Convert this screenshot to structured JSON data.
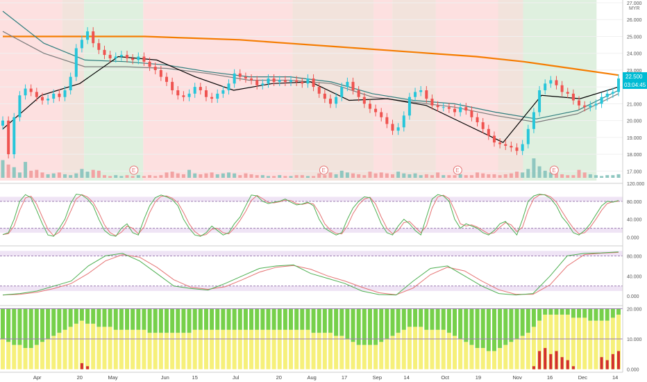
{
  "chart_data": {
    "type": "line",
    "currency": "MYR",
    "last_price": "22.500",
    "countdown": "03:04:45",
    "x_labels": [
      "Apr",
      "20",
      "May",
      "Jun",
      "15",
      "Jul",
      "20",
      "Aug",
      "17",
      "Sep",
      "14",
      "Oct",
      "19",
      "Nov",
      "16",
      "Dec",
      "14"
    ],
    "main_panel": {
      "y_ticks": [
        "27.000",
        "26.000",
        "25.000",
        "24.000",
        "23.000",
        "22.000",
        "21.000",
        "20.000",
        "19.000",
        "18.000",
        "17.000"
      ],
      "ylim": [
        16.6,
        27.0
      ],
      "close": [
        20.0,
        18.0,
        20.2,
        21.5,
        21.9,
        21.7,
        21.4,
        21.2,
        21.3,
        21.6,
        21.4,
        21.8,
        22.6,
        24.3,
        24.8,
        25.3,
        24.6,
        24.2,
        23.9,
        23.7,
        23.8,
        23.9,
        23.7,
        23.6,
        23.8,
        23.5,
        23.2,
        23.0,
        22.6,
        22.3,
        21.8,
        21.5,
        21.4,
        21.6,
        22.0,
        21.8,
        21.4,
        21.3,
        21.6,
        21.8,
        22.2,
        22.8,
        22.6,
        22.5,
        22.4,
        22.1,
        22.2,
        22.5,
        22.3,
        22.4,
        22.3,
        22.4,
        22.3,
        22.2,
        22.5,
        22.0,
        21.6,
        21.3,
        21.0,
        21.4,
        22.0,
        22.3,
        21.8,
        21.4,
        21.0,
        20.7,
        20.5,
        20.2,
        19.8,
        19.4,
        19.6,
        20.3,
        21.4,
        21.7,
        21.8,
        21.3,
        20.9,
        20.8,
        20.8,
        20.7,
        20.5,
        20.8,
        20.6,
        20.2,
        19.9,
        19.5,
        19.1,
        18.7,
        18.6,
        18.5,
        18.4,
        18.2,
        18.6,
        19.5,
        20.5,
        21.8,
        22.2,
        22.4,
        22.1,
        21.7,
        21.6,
        21.2,
        20.9,
        20.8,
        20.9,
        21.0,
        21.4,
        21.6,
        21.7,
        22.5
      ],
      "volume": [
        2.0,
        1.5,
        1.2,
        0.6,
        1.8,
        0.8,
        0.9,
        0.6,
        0.4,
        0.5,
        0.6,
        0.4,
        0.3,
        0.5,
        1.0,
        0.7,
        0.9,
        0.8,
        0.3,
        0.2,
        0.3,
        0.2,
        0.3,
        0.2,
        0.3,
        0.2,
        0.3,
        0.2,
        0.3,
        0.6,
        0.7,
        0.5,
        0.4,
        0.9,
        0.5,
        0.4,
        0.5,
        0.6,
        0.4,
        0.5,
        0.6,
        0.5,
        0.3,
        0.5,
        0.4,
        0.3,
        0.3,
        0.2,
        0.2,
        0.3,
        0.2,
        0.2,
        0.3,
        0.3,
        0.2,
        0.2,
        0.5,
        0.3,
        0.6,
        0.4,
        0.8,
        0.6,
        0.5,
        0.4,
        0.3,
        0.7,
        0.5,
        0.6,
        0.5,
        0.4,
        0.7,
        0.5,
        0.4,
        0.5,
        0.3,
        0.4,
        0.3,
        0.6,
        0.3,
        0.3,
        0.3,
        0.4,
        0.3,
        0.3,
        0.6,
        0.5,
        0.4,
        0.4,
        0.3,
        0.4,
        0.5,
        0.7,
        0.6,
        1.0,
        2.2,
        1.3,
        0.8,
        0.6,
        0.5,
        0.4,
        0.3,
        0.3,
        0.9,
        0.6,
        0.4,
        0.3,
        0.2,
        0.3,
        0.3,
        0.4
      ],
      "lines": [
        {
          "color": "#f57c00",
          "values": [
            25.0,
            25.0,
            25.0,
            25.0,
            24.9,
            24.8,
            24.6,
            24.4,
            24.2,
            24.0,
            23.8,
            23.5,
            23.1,
            22.7
          ]
        },
        {
          "color": "#2e7d7d",
          "values": [
            26.5,
            24.6,
            23.6,
            23.5,
            23.3,
            22.9,
            22.6,
            22.6,
            22.3,
            21.6,
            21.2,
            21.0,
            20.5,
            20.1,
            20.6,
            21.8
          ]
        },
        {
          "color": "#7b7b7b",
          "values": [
            25.3,
            24.0,
            23.2,
            23.2,
            23.1,
            22.8,
            22.4,
            22.4,
            22.2,
            21.4,
            21.1,
            20.8,
            20.3,
            19.9,
            20.4,
            21.6
          ]
        },
        {
          "color": "#000000",
          "values": [
            19.5,
            21.5,
            22.2,
            23.8,
            23.6,
            22.6,
            21.8,
            22.2,
            22.3,
            21.2,
            21.3,
            20.9,
            19.8,
            18.7,
            21.5,
            21.3,
            22.0
          ]
        }
      ],
      "earnings_marker": "E",
      "earnings_positions": [
        0.215,
        0.52,
        0.735,
        0.89
      ],
      "background_bands": [
        {
          "from": 0.0,
          "to": 0.1,
          "color": "#fde0e0"
        },
        {
          "from": 0.1,
          "to": 0.135,
          "color": "#f2e3dc"
        },
        {
          "from": 0.135,
          "to": 0.23,
          "color": "#dff0df"
        },
        {
          "from": 0.23,
          "to": 0.6,
          "color": "#fde0e0"
        },
        {
          "from": 0.47,
          "to": 0.6,
          "color": "#f2e3dc"
        },
        {
          "from": 0.6,
          "to": 0.63,
          "color": "#fde0e0"
        },
        {
          "from": 0.63,
          "to": 0.7,
          "color": "#f2e3dc"
        },
        {
          "from": 0.7,
          "to": 0.83,
          "color": "#fde0e0"
        },
        {
          "from": 0.8,
          "to": 0.84,
          "color": "#f2e3dc"
        },
        {
          "from": 0.84,
          "to": 0.958,
          "color": "#dff0df"
        }
      ]
    },
    "osc1": {
      "y_ticks": [
        "120.000",
        "80.000",
        "40.000",
        "0.000"
      ],
      "ylim": [
        -10,
        120
      ],
      "upper_level": 80,
      "lower_level": 20,
      "values": [
        6,
        10,
        40,
        80,
        95,
        88,
        60,
        30,
        5,
        2,
        20,
        40,
        75,
        96,
        94,
        85,
        70,
        40,
        15,
        5,
        2,
        20,
        30,
        10,
        5,
        40,
        70,
        88,
        94,
        90,
        84,
        70,
        40,
        20,
        5,
        2,
        10,
        25,
        15,
        5,
        10,
        30,
        45,
        70,
        94,
        92,
        80,
        75,
        78,
        80,
        85,
        78,
        72,
        74,
        78,
        70,
        40,
        20,
        12,
        5,
        10,
        40,
        65,
        80,
        90,
        88,
        60,
        30,
        10,
        5,
        25,
        40,
        30,
        15,
        5,
        45,
        85,
        95,
        92,
        80,
        40,
        20,
        30,
        25,
        20,
        10,
        5,
        15,
        30,
        35,
        20,
        5,
        40,
        80,
        92,
        96,
        94,
        86,
        70,
        45,
        30,
        10,
        5,
        15,
        30,
        50,
        70,
        80,
        78,
        82
      ]
    },
    "osc2": {
      "y_ticks": [
        "80.000",
        "40.000",
        "0.000"
      ],
      "ylim": [
        -8,
        100
      ],
      "upper_level": 80,
      "lower_level": 20,
      "values": [
        2,
        5,
        10,
        20,
        30,
        60,
        80,
        85,
        70,
        45,
        20,
        15,
        12,
        25,
        40,
        55,
        60,
        62,
        45,
        35,
        25,
        10,
        3,
        2,
        30,
        55,
        60,
        40,
        20,
        5,
        2,
        5,
        40,
        80,
        85,
        86,
        88
      ]
    },
    "osc3": {
      "y_ticks": [
        "20.000",
        "10.000",
        "0.000"
      ],
      "ylim": [
        -1,
        21
      ],
      "max_value": 20,
      "yellow": [
        10,
        9,
        8,
        8,
        7,
        7,
        8,
        9,
        10,
        11,
        12,
        13,
        14,
        15,
        16,
        15,
        15,
        14,
        14,
        14,
        13,
        13,
        13,
        13,
        13,
        13,
        12,
        12,
        12,
        12,
        12,
        12,
        12,
        12,
        13,
        13,
        13,
        13,
        13,
        13,
        13,
        13,
        13,
        13,
        13,
        13,
        13,
        13,
        13,
        13,
        13,
        13,
        13,
        13,
        13,
        12,
        12,
        12,
        12,
        11,
        11,
        10,
        9,
        8,
        8,
        8,
        8,
        9,
        10,
        11,
        12,
        13,
        14,
        14,
        14,
        13,
        13,
        13,
        13,
        12,
        11,
        10,
        9,
        8,
        7,
        7,
        6,
        6,
        7,
        8,
        9,
        10,
        11,
        12,
        14,
        16,
        18,
        18,
        18,
        18,
        18,
        17,
        17,
        17,
        16,
        16,
        16,
        16,
        17,
        18
      ],
      "red": [
        0,
        0,
        0,
        0,
        0,
        0,
        0,
        0,
        0,
        0,
        0,
        0,
        0,
        0,
        2,
        1,
        0,
        0,
        0,
        0,
        0,
        0,
        0,
        0,
        0,
        0,
        0,
        0,
        0,
        0,
        0,
        0,
        0,
        0,
        0,
        0,
        0,
        0,
        0,
        0,
        0,
        0,
        0,
        0,
        0,
        0,
        0,
        0,
        0,
        0,
        0,
        0,
        0,
        0,
        0,
        0,
        0,
        0,
        0,
        0,
        0,
        0,
        0,
        0,
        0,
        0,
        0,
        0,
        0,
        0,
        0,
        0,
        0,
        0,
        0,
        0,
        0,
        0,
        0,
        0,
        0,
        0,
        0,
        0,
        0,
        0,
        0,
        0,
        0,
        0,
        0,
        0,
        0,
        0,
        1,
        6,
        7,
        5,
        6,
        4,
        3,
        1,
        0,
        0,
        0,
        0,
        4,
        3,
        5,
        6
      ]
    }
  }
}
